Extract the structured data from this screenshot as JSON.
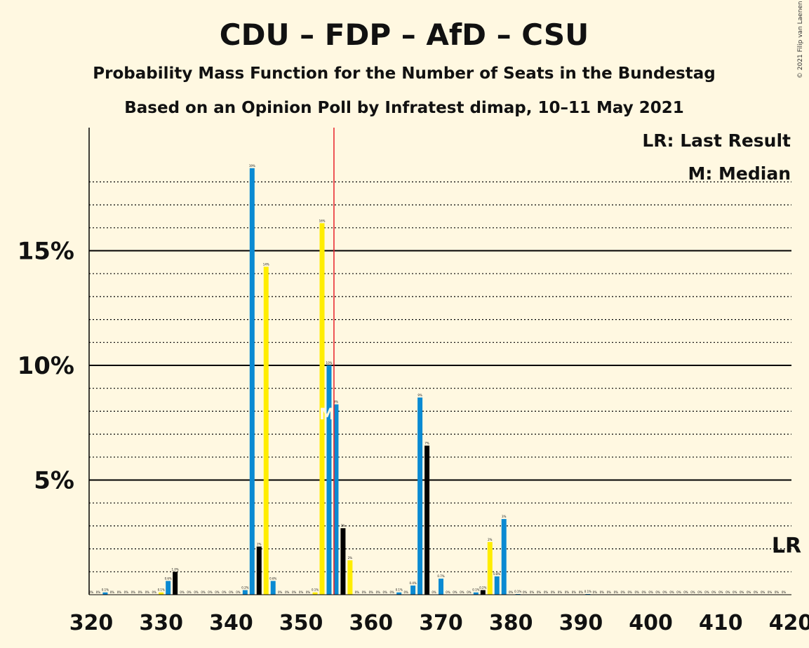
{
  "chart_data": {
    "type": "bar",
    "title": "CDU – FDP – AfD – CSU",
    "subtitle": "Probability Mass Function for the Number of Seats in the Bundestag",
    "subtitle2": "Based on an Opinion Poll by Infratest dimap, 10–11 May 2021",
    "copyright": "© 2021 Filip van Laenen",
    "legend": {
      "lr": "LR: Last Result",
      "median": "M: Median",
      "position": "top-right"
    },
    "xlim": [
      320,
      420
    ],
    "ylim": [
      0,
      20
    ],
    "x_ticks": [
      {
        "value": 320,
        "label": "320"
      },
      {
        "value": 330,
        "label": "330"
      },
      {
        "value": 340,
        "label": "340"
      },
      {
        "value": 350,
        "label": "350"
      },
      {
        "value": 360,
        "label": "360"
      },
      {
        "value": 370,
        "label": "370"
      },
      {
        "value": 380,
        "label": "380"
      },
      {
        "value": 390,
        "label": "390"
      },
      {
        "value": 400,
        "label": "400"
      },
      {
        "value": 410,
        "label": "410"
      },
      {
        "value": 420,
        "label": "420"
      }
    ],
    "y_ticks": [
      {
        "value": 5,
        "label": "5%"
      },
      {
        "value": 10,
        "label": "10%"
      },
      {
        "value": 15,
        "label": "15%"
      }
    ],
    "median_seats": 355,
    "median_marker": "M",
    "median_line_color": "#E8202A",
    "last_result_seats": 420,
    "last_result_marker": "LR",
    "bars": [
      {
        "seats": 322,
        "value": 0.1,
        "label": "0.1%",
        "color": "#0A8AD2"
      },
      {
        "seats": 330,
        "value": 0.1,
        "label": "0.1%",
        "color": "#FFED00"
      },
      {
        "seats": 331,
        "value": 0.6,
        "label": "0.6%",
        "color": "#0A8AD2"
      },
      {
        "seats": 332,
        "value": 1.0,
        "label": "1.0%",
        "color": "#000000"
      },
      {
        "seats": 342,
        "value": 0.2,
        "label": "0.2%",
        "color": "#0A8AD2"
      },
      {
        "seats": 343,
        "value": 18.6,
        "label": "19%",
        "color": "#0A8AD2"
      },
      {
        "seats": 344,
        "value": 2.1,
        "label": "2%",
        "color": "#000000"
      },
      {
        "seats": 345,
        "value": 14.3,
        "label": "14%",
        "color": "#FFED00"
      },
      {
        "seats": 346,
        "value": 0.6,
        "label": "0.6%",
        "color": "#0A8AD2"
      },
      {
        "seats": 352,
        "value": 0.1,
        "label": "0.1%",
        "color": "#FFED00"
      },
      {
        "seats": 353,
        "value": 16.2,
        "label": "16%",
        "color": "#FFED00"
      },
      {
        "seats": 354,
        "value": 10.0,
        "label": "10%",
        "color": "#0A8AD2"
      },
      {
        "seats": 355,
        "value": 8.3,
        "label": "8%",
        "color": "#0A8AD2"
      },
      {
        "seats": 356,
        "value": 2.9,
        "label": "3%",
        "color": "#000000"
      },
      {
        "seats": 357,
        "value": 1.5,
        "label": "2%",
        "color": "#FFED00"
      },
      {
        "seats": 364,
        "value": 0.1,
        "label": "0.1%",
        "color": "#0A8AD2"
      },
      {
        "seats": 366,
        "value": 0.4,
        "label": "0.4%",
        "color": "#0A8AD2"
      },
      {
        "seats": 367,
        "value": 8.6,
        "label": "9%",
        "color": "#0A8AD2"
      },
      {
        "seats": 368,
        "value": 6.5,
        "label": "7%",
        "color": "#000000"
      },
      {
        "seats": 370,
        "value": 0.7,
        "label": "0.7%",
        "color": "#0A8AD2"
      },
      {
        "seats": 375,
        "value": 0.1,
        "label": "0.1%",
        "color": "#0A8AD2"
      },
      {
        "seats": 376,
        "value": 0.2,
        "label": "0.2%",
        "color": "#000000"
      },
      {
        "seats": 377,
        "value": 2.3,
        "label": "2%",
        "color": "#FFED00"
      },
      {
        "seats": 378,
        "value": 0.8,
        "label": "0.8%",
        "color": "#0A8AD2"
      },
      {
        "seats": 379,
        "value": 3.3,
        "label": "3%",
        "color": "#0A8AD2"
      },
      {
        "seats": 381,
        "value": 0.03,
        "label": "0.1%",
        "color": "#0A8AD2"
      },
      {
        "seats": 391,
        "value": 0.03,
        "label": "0.1%",
        "color": "#0A8AD2"
      }
    ]
  }
}
